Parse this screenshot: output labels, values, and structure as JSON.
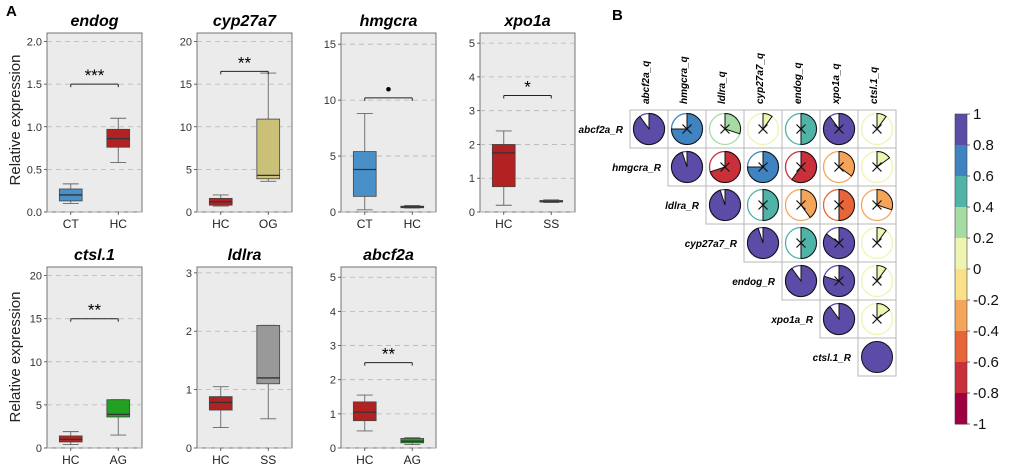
{
  "panel_labels": [
    "A",
    "B"
  ],
  "y_axis_label": "Relative expression",
  "chart_data": [
    {
      "type": "box",
      "panel": "A",
      "title": "endog",
      "ylim": [
        0,
        2.1
      ],
      "yticks": [
        "0.0",
        "0.5",
        "1.0",
        "1.5",
        "2.0"
      ],
      "groups": [
        {
          "label": "CT",
          "color": "#4a90c8",
          "min": 0.1,
          "q1": 0.13,
          "median": 0.2,
          "q3": 0.27,
          "max": 0.33
        },
        {
          "label": "HC",
          "color": "#b22222",
          "min": 0.58,
          "q1": 0.76,
          "median": 0.86,
          "q3": 0.97,
          "max": 1.1
        }
      ],
      "comparison": {
        "from": 0,
        "to": 1,
        "y": 1.5,
        "label": "***"
      }
    },
    {
      "type": "box",
      "panel": "A",
      "title": "cyp27a7",
      "ylim": [
        0,
        21
      ],
      "yticks": [
        "0",
        "5",
        "10",
        "15",
        "20"
      ],
      "groups": [
        {
          "label": "HC",
          "color": "#b22222",
          "min": 0.7,
          "q1": 0.8,
          "median": 1.2,
          "q3": 1.6,
          "max": 2.0
        },
        {
          "label": "OG",
          "color": "#cbc078",
          "min": 3.6,
          "q1": 3.9,
          "median": 4.3,
          "q3": 10.9,
          "max": 16.3
        }
      ],
      "comparison": {
        "from": 0,
        "to": 1,
        "y": 16.5,
        "label": "**"
      }
    },
    {
      "type": "box",
      "panel": "A",
      "title": "hmgcra",
      "ylim": [
        0,
        16
      ],
      "yticks": [
        "0",
        "5",
        "10",
        "15"
      ],
      "groups": [
        {
          "label": "CT",
          "color": "#4a90c8",
          "min": 0.2,
          "q1": 1.4,
          "median": 3.8,
          "q3": 5.4,
          "max": 8.8
        },
        {
          "label": "HC",
          "color": "#b22222",
          "min": 0.35,
          "q1": 0.38,
          "median": 0.45,
          "q3": 0.52,
          "max": 0.58
        }
      ],
      "comparison": {
        "from": 0,
        "to": 1,
        "y": 10.2,
        "label": "•"
      }
    },
    {
      "type": "box",
      "panel": "A",
      "title": "xpo1a",
      "ylim": [
        0,
        5.3
      ],
      "yticks": [
        "0",
        "1",
        "2",
        "3",
        "4",
        "5"
      ],
      "groups": [
        {
          "label": "HC",
          "color": "#b22222",
          "min": 0.2,
          "q1": 0.75,
          "median": 1.75,
          "q3": 2.0,
          "max": 2.4
        },
        {
          "label": "SS",
          "color": "#888888",
          "min": 0.28,
          "q1": 0.3,
          "median": 0.32,
          "q3": 0.34,
          "max": 0.36
        }
      ],
      "comparison": {
        "from": 0,
        "to": 1,
        "y": 3.45,
        "label": "*"
      }
    },
    {
      "type": "box",
      "panel": "A",
      "title": "ctsl.1",
      "ylim": [
        0,
        21
      ],
      "yticks": [
        "0",
        "5",
        "10",
        "15",
        "20"
      ],
      "groups": [
        {
          "label": "HC",
          "color": "#b22222",
          "min": 0.4,
          "q1": 0.7,
          "median": 1.0,
          "q3": 1.4,
          "max": 1.9
        },
        {
          "label": "AG",
          "color": "#22a022",
          "min": 1.5,
          "q1": 3.6,
          "median": 3.9,
          "q3": 5.6,
          "max": 5.6
        }
      ],
      "comparison": {
        "from": 0,
        "to": 1,
        "y": 15.0,
        "label": "**"
      }
    },
    {
      "type": "box",
      "panel": "A",
      "title": "ldlra",
      "ylim": [
        0,
        3.1
      ],
      "yticks": [
        "0",
        "1",
        "2",
        "3"
      ],
      "groups": [
        {
          "label": "HC",
          "color": "#b22222",
          "min": 0.35,
          "q1": 0.65,
          "median": 0.78,
          "q3": 0.88,
          "max": 1.05
        },
        {
          "label": "SS",
          "color": "#999999",
          "min": 0.5,
          "q1": 1.1,
          "median": 1.2,
          "q3": 2.1,
          "max": 2.1
        }
      ],
      "comparison": null
    },
    {
      "type": "box",
      "panel": "A",
      "title": "abcf2a",
      "ylim": [
        0,
        5.3
      ],
      "yticks": [
        "0",
        "1",
        "2",
        "3",
        "4",
        "5"
      ],
      "groups": [
        {
          "label": "HC",
          "color": "#b22222",
          "min": 0.5,
          "q1": 0.8,
          "median": 1.05,
          "q3": 1.35,
          "max": 1.55
        },
        {
          "label": "AG",
          "color": "#22a022",
          "min": 0.1,
          "q1": 0.15,
          "median": 0.2,
          "q3": 0.28,
          "max": 0.3
        }
      ],
      "comparison": {
        "from": 0,
        "to": 1,
        "y": 2.5,
        "label": "**"
      }
    },
    {
      "type": "heatmap",
      "panel": "B",
      "column_labels": [
        "abcf2a_q",
        "hmgcra_q",
        "ldlra_q",
        "cyp27a7_q",
        "endog_q",
        "xpo1a_q",
        "ctsl.1_q"
      ],
      "row_labels": [
        "abcf2a_R",
        "hmgcra_R",
        "ldlra_R",
        "cyp27a7_R",
        "endog_R",
        "xpo1a_R",
        "ctsl.1_R"
      ],
      "matrix": [
        [
          0.9,
          0.75,
          0.3,
          0.1,
          0.5,
          0.9,
          0.1
        ],
        [
          null,
          0.95,
          -0.7,
          0.75,
          -0.6,
          -0.35,
          0.15
        ],
        [
          null,
          null,
          0.95,
          0.5,
          -0.4,
          -0.5,
          -0.3
        ],
        [
          null,
          null,
          null,
          0.95,
          0.5,
          0.85,
          0.1
        ],
        [
          null,
          null,
          null,
          null,
          0.9,
          0.8,
          0.1
        ],
        [
          null,
          null,
          null,
          null,
          null,
          0.9,
          0.15
        ],
        [
          null,
          null,
          null,
          null,
          null,
          null,
          1.0
        ]
      ],
      "nonsignificant": [
        [
          false,
          true,
          true,
          true,
          true,
          true,
          true
        ],
        [
          false,
          false,
          true,
          true,
          true,
          true,
          true
        ],
        [
          false,
          false,
          false,
          true,
          true,
          true,
          true
        ],
        [
          false,
          false,
          false,
          false,
          true,
          true,
          true
        ],
        [
          false,
          false,
          false,
          false,
          false,
          true,
          true
        ],
        [
          false,
          false,
          false,
          false,
          false,
          false,
          true
        ],
        [
          false,
          false,
          false,
          false,
          false,
          false,
          false
        ]
      ],
      "colorbar": {
        "ticks": [
          "1",
          "0.8",
          "0.6",
          "0.4",
          "0.2",
          "0",
          "-0.2",
          "-0.4",
          "-0.6",
          "-0.8",
          "-1"
        ],
        "colors": [
          "#5d4ba8",
          "#3f83c0",
          "#4fb3a8",
          "#a7dba4",
          "#edf5b0",
          "#fbe08a",
          "#f5a55a",
          "#e8653a",
          "#c9303a",
          "#9e0142"
        ]
      }
    }
  ]
}
